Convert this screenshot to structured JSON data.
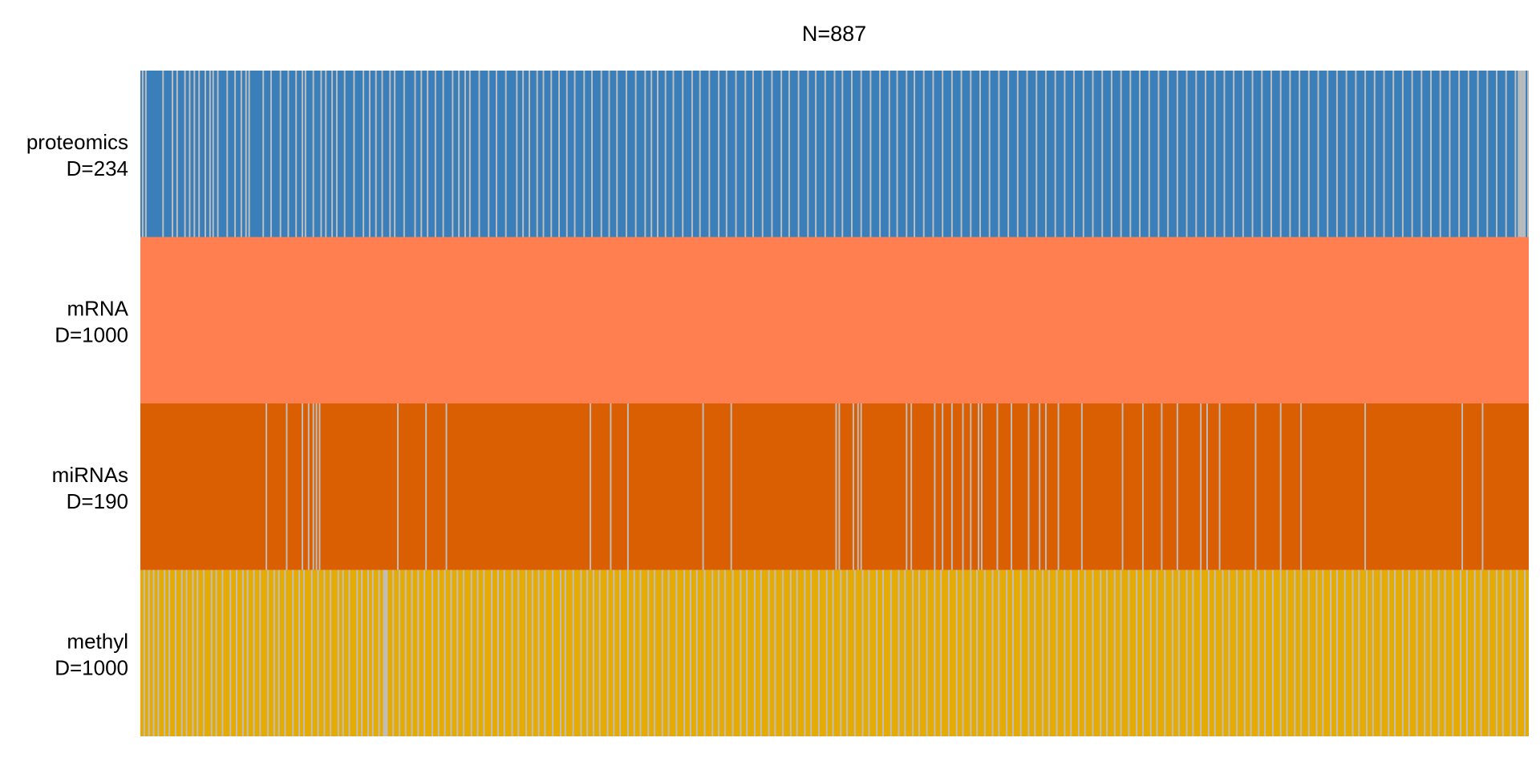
{
  "chart_data": {
    "type": "heatmap",
    "title": "N=887",
    "n_samples": 887,
    "missing_color": "#BEBEBE",
    "rows": [
      {
        "name": "proteomics",
        "dim": "D=234",
        "color": "#3A7FBA",
        "missing_samples": [
          1,
          3,
          14,
          20,
          23,
          28,
          31,
          34,
          37,
          41,
          44,
          46,
          49,
          55,
          60,
          64,
          67,
          69,
          78,
          83,
          89,
          94,
          99,
          103,
          105,
          110,
          115,
          118,
          122,
          125,
          130,
          136,
          142,
          146,
          150,
          154,
          159,
          162,
          168,
          175,
          179,
          183,
          188,
          193,
          199,
          203,
          207,
          210,
          216,
          222,
          227,
          233,
          240,
          244,
          248,
          253,
          257,
          262,
          267,
          272,
          277,
          283,
          288,
          294,
          299,
          304,
          310,
          316,
          322,
          326,
          330,
          335,
          340,
          346,
          352,
          357,
          363,
          369,
          374,
          380,
          386,
          391,
          397,
          403,
          409,
          414,
          420,
          426,
          431,
          437,
          443,
          448,
          454,
          460,
          466,
          472,
          478,
          483,
          489,
          494,
          500,
          506,
          512,
          518,
          524,
          530,
          536,
          542,
          548,
          554,
          560,
          566,
          572,
          578,
          584,
          590,
          596,
          602,
          608,
          614,
          620,
          626,
          632,
          638,
          644,
          650,
          656,
          662,
          668,
          674,
          680,
          686,
          692,
          698,
          704,
          710,
          716,
          722,
          728,
          734,
          740,
          746,
          752,
          758,
          764,
          770,
          776,
          782,
          788,
          794,
          800,
          806,
          812,
          818,
          824,
          830,
          836,
          842,
          848,
          854,
          860,
          866,
          872,
          878,
          880,
          881,
          882,
          883,
          884,
          886
        ]
      },
      {
        "name": "mRNA",
        "dim": "D=1000",
        "color": "#FF7F50",
        "missing_samples": []
      },
      {
        "name": "miRNAs",
        "dim": "D=190",
        "color": "#D95F02",
        "missing_samples": [
          80,
          93,
          103,
          107,
          110,
          112,
          114,
          164,
          182,
          195,
          287,
          300,
          311,
          359,
          377,
          444,
          446,
          455,
          458,
          460,
          489,
          492,
          507,
          512,
          518,
          525,
          530,
          535,
          537,
          547,
          556,
          567,
          574,
          578,
          586,
          601,
          627,
          640,
          652,
          662,
          677,
          681,
          689,
          712,
          728,
          741,
          782,
          844,
          857
        ]
      },
      {
        "name": "methyl",
        "dim": "D=1000",
        "color": "#E6AB02",
        "missing_samples": [
          2,
          5,
          8,
          11,
          15,
          18,
          22,
          26,
          29,
          33,
          36,
          40,
          45,
          48,
          52,
          57,
          61,
          65,
          68,
          72,
          76,
          81,
          85,
          88,
          92,
          97,
          101,
          104,
          109,
          113,
          117,
          121,
          126,
          129,
          133,
          138,
          141,
          145,
          148,
          152,
          155,
          156,
          157,
          161,
          165,
          169,
          173,
          177,
          181,
          186,
          190,
          194,
          198,
          202,
          206,
          211,
          215,
          219,
          224,
          228,
          232,
          237,
          241,
          246,
          250,
          254,
          258,
          263,
          268,
          271,
          276,
          281,
          285,
          289,
          293,
          298,
          302,
          306,
          311,
          315,
          319,
          324,
          328,
          333,
          337,
          342,
          347,
          351,
          355,
          360,
          365,
          369,
          373,
          378,
          383,
          387,
          392,
          396,
          401,
          405,
          410,
          415,
          419,
          424,
          428,
          433,
          438,
          442,
          447,
          451,
          456,
          461,
          465,
          470,
          474,
          479,
          484,
          488,
          493,
          497,
          502,
          507,
          511,
          516,
          521,
          525,
          530,
          534,
          539,
          544,
          548,
          553,
          557,
          562,
          567,
          571,
          576,
          580,
          585,
          590,
          594,
          599,
          603,
          608,
          613,
          617,
          622,
          626,
          631,
          636,
          640,
          645,
          649,
          654,
          659,
          663,
          668,
          672,
          677,
          682,
          686,
          691,
          695,
          700,
          705,
          709,
          714,
          718,
          723,
          728,
          732,
          737,
          741,
          746,
          751,
          755,
          760,
          764,
          769,
          774,
          778,
          783,
          787,
          792,
          797,
          801,
          806,
          810,
          815,
          820,
          824,
          829,
          833,
          838,
          843,
          847,
          852,
          856,
          861,
          866,
          870,
          875,
          879,
          884
        ]
      }
    ]
  }
}
